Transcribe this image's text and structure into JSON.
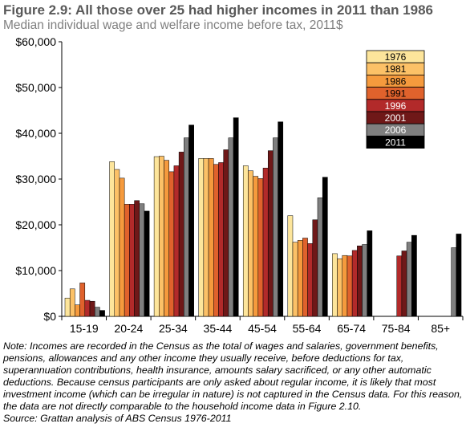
{
  "chart_data": {
    "type": "bar",
    "title": "Figure 2.9: All those over 25 had higher incomes in 2011 than 1986",
    "subtitle": "Median individual wage and welfare income before tax, 2011$",
    "xlabel": "",
    "ylabel": "",
    "categories": [
      "15-19",
      "20-24",
      "25-34",
      "35-44",
      "45-54",
      "55-64",
      "65-74",
      "75-84",
      "85+"
    ],
    "ylim": [
      0,
      60000
    ],
    "yticks": [
      0,
      10000,
      20000,
      30000,
      40000,
      50000,
      60000
    ],
    "ytick_labels": [
      "$0",
      "$10,000",
      "$20,000",
      "$30,000",
      "$40,000",
      "$50,000",
      "$60,000"
    ],
    "grid": false,
    "legend_position": "top-right",
    "series": [
      {
        "name": "1976",
        "color": "#fde59b",
        "values": [
          4000,
          33800,
          34900,
          34500,
          32900,
          22000,
          13700,
          null,
          null
        ]
      },
      {
        "name": "1981",
        "color": "#fcc167",
        "values": [
          6000,
          32100,
          35000,
          34500,
          31800,
          16200,
          12600,
          null,
          null
        ]
      },
      {
        "name": "1986",
        "color": "#f59a3d",
        "values": [
          2500,
          30200,
          34100,
          34500,
          30600,
          16600,
          13300,
          null,
          null
        ]
      },
      {
        "name": "1991",
        "color": "#e0622c",
        "values": [
          7300,
          24500,
          31600,
          33200,
          30100,
          17100,
          13200,
          null,
          null
        ]
      },
      {
        "name": "1996",
        "color": "#b22a2a",
        "values": [
          3500,
          24500,
          32900,
          33600,
          32400,
          15900,
          14400,
          13200,
          null
        ]
      },
      {
        "name": "2001",
        "color": "#6f1818",
        "values": [
          3300,
          25300,
          35900,
          36400,
          36200,
          21100,
          15400,
          14300,
          null
        ]
      },
      {
        "name": "2006",
        "color": "#7f7f7f",
        "values": [
          2000,
          24600,
          39000,
          39000,
          39000,
          25900,
          15700,
          16200,
          15000
        ]
      },
      {
        "name": "2011",
        "color": "#000000",
        "values": [
          1300,
          23000,
          41800,
          43400,
          42500,
          30400,
          18700,
          17700,
          18000
        ]
      }
    ]
  },
  "notes": {
    "note": "Note: Incomes are recorded in the Census as the total of wages and salaries, government benefits, pensions, allowances and any other income they usually receive, before deductions for tax, superannuation contributions, health insurance, amounts salary sacrificed, or any other automatic deductions. Because census participants are only asked about regular income, it is likely that most investment income (which can be irregular in nature) is not captured in the Census data. For this reason, the data are not directly comparable to the household income data in Figure 2.10.",
    "source": "Source: Grattan analysis of ABS Census 1976-2011"
  }
}
